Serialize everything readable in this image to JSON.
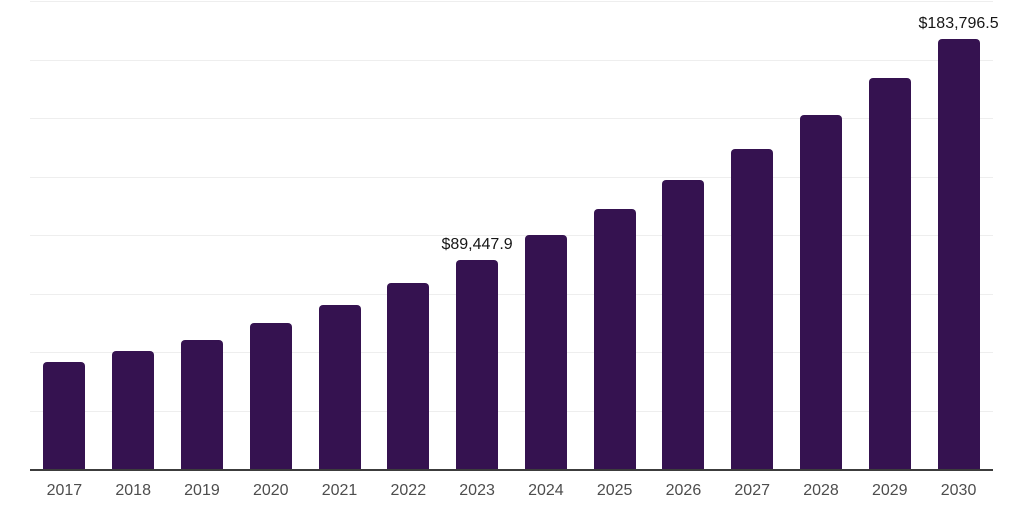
{
  "chart_data": {
    "type": "bar",
    "title": "",
    "xlabel": "",
    "ylabel": "",
    "categories": [
      "2017",
      "2018",
      "2019",
      "2020",
      "2021",
      "2022",
      "2023",
      "2024",
      "2025",
      "2026",
      "2027",
      "2028",
      "2029",
      "2030"
    ],
    "values": [
      45700,
      50300,
      55300,
      62600,
      70300,
      79500,
      89447.9,
      99900,
      111000,
      123400,
      136600,
      151200,
      167000,
      183796.5
    ],
    "data_labels": [
      {
        "category": "2023",
        "text": "$89,447.9"
      },
      {
        "category": "2030",
        "text": "$183,796.5"
      }
    ],
    "ylim": [
      0,
      200000
    ],
    "gridline_interval": 25000,
    "grid": "horizontal",
    "legend_position": "none",
    "y_axis_labels_visible": false
  },
  "style": {
    "bar_color": "#351250",
    "gridline_color": "#eeeeee",
    "axis_line_color": "#3c3c3c",
    "tick_label_color": "#4d4d4d",
    "data_label_color": "#161616",
    "background_color": "#ffffff"
  }
}
